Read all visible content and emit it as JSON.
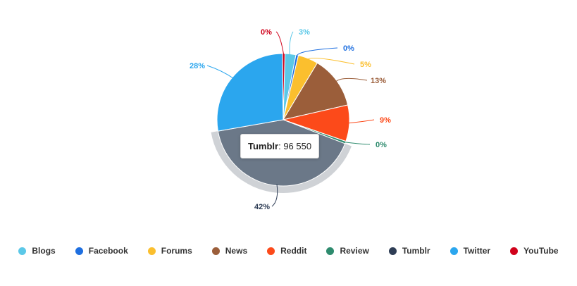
{
  "chart_data": {
    "type": "pie",
    "title": "",
    "slices": [
      {
        "name": "Blogs",
        "label": "3%",
        "value": 3,
        "color": "#5bc8e8"
      },
      {
        "name": "Facebook",
        "label": "0%",
        "value": 0,
        "color": "#1e6fe0"
      },
      {
        "name": "Forums",
        "label": "5%",
        "value": 5,
        "color": "#fbbf2e"
      },
      {
        "name": "News",
        "label": "13%",
        "value": 13,
        "color": "#9b5e3a"
      },
      {
        "name": "Reddit",
        "label": "9%",
        "value": 9,
        "color": "#fc4a1a"
      },
      {
        "name": "Review",
        "label": "0%",
        "value": 0,
        "color": "#2e8b6e"
      },
      {
        "name": "Tumblr",
        "label": "42%",
        "value": 42,
        "color": "#6b7888"
      },
      {
        "name": "Twitter",
        "label": "28%",
        "value": 28,
        "color": "#2ba6ee"
      },
      {
        "name": "YouTube",
        "label": "0%",
        "value": 0,
        "color": "#d0021b"
      }
    ],
    "highlighted": "Tumblr",
    "legend_position": "bottom"
  },
  "tooltip": {
    "series": "Tumblr",
    "value_text": ": 96 550"
  },
  "legend": {
    "items": [
      {
        "label": "Blogs",
        "color": "#5bc8e8"
      },
      {
        "label": "Facebook",
        "color": "#1e6fe0"
      },
      {
        "label": "Forums",
        "color": "#fbbf2e"
      },
      {
        "label": "News",
        "color": "#9b5e3a"
      },
      {
        "label": "Reddit",
        "color": "#fc4a1a"
      },
      {
        "label": "Review",
        "color": "#2e8b6e"
      },
      {
        "label": "Tumblr",
        "color": "#2e3d55"
      },
      {
        "label": "Twitter",
        "color": "#2ba6ee"
      },
      {
        "label": "YouTube",
        "color": "#d0021b"
      }
    ]
  }
}
